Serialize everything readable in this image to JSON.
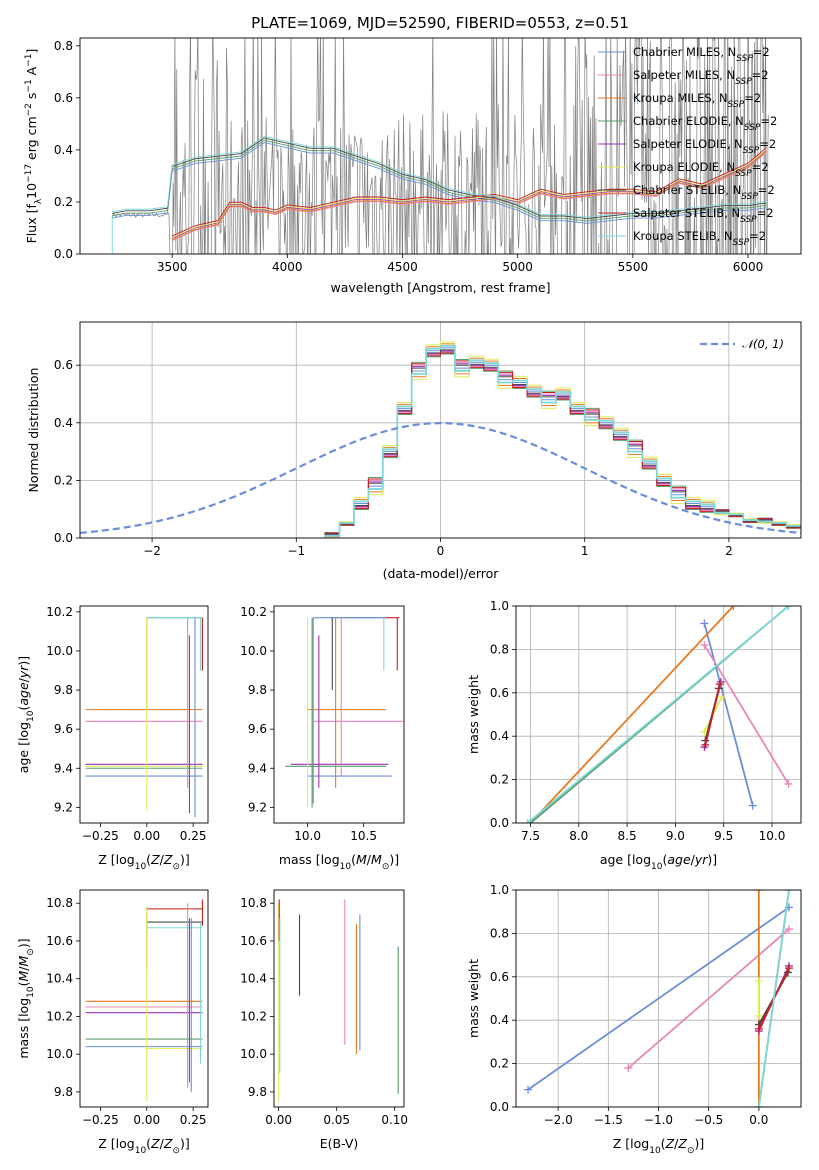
{
  "figure": {
    "title": "PLATE=1069, MJD=52590, FIBERID=0553, z=0.51"
  },
  "series_styles": [
    {
      "name": "Chabrier MILES, N$_{SSP}$=2",
      "label_main": "Chabrier MILES, N",
      "label_sub": "SSP",
      "label_tail": "=2",
      "color": "#6a8fd8"
    },
    {
      "name": "Salpeter MILES, N$_{SSP}$=2",
      "label_main": "Salpeter MILES, N",
      "label_sub": "SSP",
      "label_tail": "=2",
      "color": "#e887b8"
    },
    {
      "name": "Kroupa MILES, N$_{SSP}$=2",
      "label_main": "Kroupa MILES, N",
      "label_sub": "SSP",
      "label_tail": "=2",
      "color": "#e87a1e"
    },
    {
      "name": "Chabrier ELODIE, N$_{SSP}$=2",
      "label_main": "Chabrier ELODIE, N",
      "label_sub": "SSP",
      "label_tail": "=2",
      "color": "#5a9e6e"
    },
    {
      "name": "Salpeter ELODIE, N$_{SSP}$=2",
      "label_main": "Salpeter ELODIE, N",
      "label_sub": "SSP",
      "label_tail": "=2",
      "color": "#9a36b8"
    },
    {
      "name": "Kroupa ELODIE, N$_{SSP}$=2",
      "label_main": "Kroupa ELODIE, N",
      "label_sub": "SSP",
      "label_tail": "=2",
      "color": "#e4ec5c"
    },
    {
      "name": "Chabrier STELIB, N$_{SSP}$=2",
      "label_main": "Chabrier STELIB, N",
      "label_sub": "SSP",
      "label_tail": "=2",
      "color": "#4a4a4a"
    },
    {
      "name": "Salpeter STELIB, N$_{SSP}$=2",
      "label_main": "Salpeter STELIB, N",
      "label_sub": "SSP",
      "label_tail": "=2",
      "color": "#c81e1e"
    },
    {
      "name": "Kroupa STELIB, N$_{SSP}$=2",
      "label_main": "Kroupa STELIB, N",
      "label_sub": "SSP",
      "label_tail": "=2",
      "color": "#7fd8d8"
    }
  ],
  "chart_data": [
    {
      "id": "spectrum",
      "type": "line",
      "xlabel": "wavelength [Angstrom, rest frame]",
      "ylabel": "Flux [f$_\\lambda$10$^{-17}$ erg cm$^{-2}$ s$^{-1}$ A$^{-1}$]",
      "ylabel_parts": [
        "Flux [f",
        "λ",
        "10",
        "−17",
        " erg cm",
        "−2",
        " s",
        "−1",
        " A",
        "−1",
        "]"
      ],
      "xlim": [
        3100,
        6230
      ],
      "ylim": [
        0,
        0.83
      ],
      "xticks": [
        3500,
        4000,
        4500,
        5000,
        5500,
        6000
      ],
      "yticks": [
        0.0,
        0.2,
        0.4,
        0.6,
        0.8
      ],
      "grid": false,
      "legend_loc": "upper right",
      "data_color": "#808080",
      "continuum_blue": {
        "color": "#7fd8d8",
        "x": [
          3240,
          3300,
          3400,
          3480,
          3500,
          3600,
          3700,
          3800,
          3900,
          4000,
          4100,
          4200,
          4300,
          4400,
          4500,
          4600,
          4700,
          4800,
          4900,
          5000,
          5100,
          5200,
          5300,
          5400,
          5500,
          5600,
          5700,
          5800,
          5900,
          6000,
          6080
        ],
        "y": [
          0.15,
          0.16,
          0.16,
          0.17,
          0.33,
          0.36,
          0.37,
          0.38,
          0.44,
          0.42,
          0.4,
          0.4,
          0.37,
          0.34,
          0.3,
          0.28,
          0.24,
          0.22,
          0.21,
          0.18,
          0.14,
          0.14,
          0.13,
          0.14,
          0.15,
          0.15,
          0.16,
          0.17,
          0.18,
          0.18,
          0.19
        ]
      },
      "continuum_red": {
        "color": "#e87a1e",
        "x": [
          3500,
          3550,
          3600,
          3650,
          3700,
          3750,
          3800,
          3850,
          3900,
          3950,
          4000,
          4100,
          4200,
          4300,
          4400,
          4500,
          4600,
          4700,
          4800,
          4900,
          5000,
          5100,
          5200,
          5300,
          5400,
          5500,
          5600,
          5700,
          5800,
          5900,
          6000,
          6080
        ],
        "y": [
          0.06,
          0.08,
          0.1,
          0.11,
          0.12,
          0.19,
          0.19,
          0.17,
          0.17,
          0.16,
          0.18,
          0.17,
          0.19,
          0.21,
          0.21,
          0.2,
          0.21,
          0.2,
          0.21,
          0.22,
          0.2,
          0.24,
          0.22,
          0.23,
          0.24,
          0.24,
          0.23,
          0.28,
          0.26,
          0.3,
          0.34,
          0.4
        ]
      }
    },
    {
      "id": "residuals",
      "type": "line",
      "xlabel": "(data-model)/error",
      "ylabel": "Normed distribution",
      "xlim": [
        -2.5,
        2.5
      ],
      "ylim": [
        0,
        0.75
      ],
      "xticks": [
        -2,
        -1,
        0,
        1,
        2
      ],
      "yticks": [
        0.0,
        0.2,
        0.4,
        0.6
      ],
      "grid": true,
      "legend_loc": "upper right",
      "legend_label": "𝒩(0, 1)",
      "normal_color": "#6a8fd8",
      "bin_edges": [
        -0.8,
        -0.7,
        -0.6,
        -0.5,
        -0.4,
        -0.3,
        -0.2,
        -0.1,
        0.0,
        0.1,
        0.2,
        0.3,
        0.4,
        0.5,
        0.6,
        0.7,
        0.8,
        0.9,
        1.0,
        1.1,
        1.2,
        1.3,
        1.4,
        1.5,
        1.6,
        1.7,
        1.8,
        1.9,
        2.0,
        2.1,
        2.2,
        2.3,
        2.4,
        2.5
      ],
      "hist_mean": [
        0.01,
        0.05,
        0.12,
        0.18,
        0.3,
        0.45,
        0.58,
        0.65,
        0.66,
        0.59,
        0.61,
        0.6,
        0.55,
        0.54,
        0.51,
        0.48,
        0.5,
        0.45,
        0.42,
        0.4,
        0.36,
        0.31,
        0.26,
        0.2,
        0.15,
        0.12,
        0.11,
        0.09,
        0.08,
        0.06,
        0.06,
        0.05,
        0.04
      ],
      "series_jitter": [
        0.0,
        0.02,
        -0.02,
        0.03,
        0.015,
        -0.03,
        0.01,
        0.025,
        -0.01
      ]
    },
    {
      "id": "age-vs-Z",
      "type": "scatter",
      "xlabel": "Z [log$_{10}$(Z/Z$_\\odot$)]",
      "ylabel": "age [log$_{10}$(age/yr)]",
      "xlim": [
        -0.36,
        0.33
      ],
      "ylim": [
        9.12,
        10.23
      ],
      "xticks": [
        -0.25,
        0.0,
        0.25
      ],
      "yticks": [
        9.2,
        9.4,
        9.6,
        9.8,
        10.0,
        10.2
      ],
      "xtick_labels": [
        "−0.25",
        "0.00",
        "0.25"
      ],
      "grid": false,
      "hlines": [
        {
          "series": 0,
          "y": 9.36,
          "x": [
            -0.33,
            0.3
          ]
        },
        {
          "series": 1,
          "y": 9.64,
          "x": [
            -0.33,
            0.3
          ]
        },
        {
          "series": 2,
          "y": 9.7,
          "x": [
            -0.33,
            0.3
          ]
        },
        {
          "series": 3,
          "y": 9.4,
          "x": [
            -0.33,
            0.3
          ]
        },
        {
          "series": 4,
          "y": 9.42,
          "x": [
            -0.33,
            0.3
          ]
        },
        {
          "series": 5,
          "y": 9.41,
          "x": [
            -0.33,
            0.3
          ]
        },
        {
          "series": 0,
          "y": 10.17,
          "x": [
            0.0,
            0.3
          ]
        },
        {
          "series": 8,
          "y": 10.17,
          "x": [
            0.0,
            0.3
          ]
        }
      ],
      "vlines": [
        {
          "series": 0,
          "x": 0.26,
          "y": [
            9.15,
            10.17
          ]
        },
        {
          "series": 1,
          "x": 0.22,
          "y": [
            9.3,
            10.17
          ]
        },
        {
          "series": 2,
          "x": 0.0,
          "y": [
            9.7,
            10.17
          ]
        },
        {
          "series": 4,
          "x": 0.23,
          "y": [
            9.17,
            10.08
          ]
        },
        {
          "series": 5,
          "x": 0.0,
          "y": [
            9.18,
            10.17
          ]
        },
        {
          "series": 7,
          "x": 0.3,
          "y": [
            9.9,
            10.17
          ]
        },
        {
          "series": 8,
          "x": 0.29,
          "y": [
            9.9,
            10.17
          ]
        }
      ]
    },
    {
      "id": "age-vs-mass",
      "type": "scatter",
      "xlabel": "mass [log$_{10}$(M/M$_\\odot$)]",
      "xlim": [
        9.7,
        10.86
      ],
      "ylim": [
        9.12,
        10.23
      ],
      "xticks": [
        10.0,
        10.5
      ],
      "yticks": [
        9.2,
        9.4,
        9.6,
        9.8,
        10.0,
        10.2
      ],
      "grid": false,
      "hlines": [
        {
          "series": 0,
          "y": 9.36,
          "x": [
            10.0,
            10.75
          ]
        },
        {
          "series": 1,
          "y": 9.64,
          "x": [
            10.05,
            10.85
          ]
        },
        {
          "series": 2,
          "y": 9.7,
          "x": [
            10.0,
            10.7
          ]
        },
        {
          "series": 3,
          "y": 9.41,
          "x": [
            9.8,
            10.7
          ]
        },
        {
          "series": 4,
          "y": 9.42,
          "x": [
            9.85,
            10.72
          ]
        },
        {
          "series": 7,
          "y": 10.17,
          "x": [
            10.3,
            10.82
          ]
        },
        {
          "series": 8,
          "y": 10.17,
          "x": [
            10.2,
            10.7
          ]
        },
        {
          "series": 0,
          "y": 10.17,
          "x": [
            10.05,
            10.7
          ]
        }
      ],
      "vlines": [
        {
          "series": 0,
          "x": 10.05,
          "y": [
            9.22,
            10.17
          ]
        },
        {
          "series": 1,
          "x": 10.3,
          "y": [
            9.36,
            10.17
          ]
        },
        {
          "series": 2,
          "x": 10.25,
          "y": [
            9.3,
            10.17
          ]
        },
        {
          "series": 3,
          "x": 10.04,
          "y": [
            9.2,
            10.17
          ]
        },
        {
          "series": 4,
          "x": 10.1,
          "y": [
            9.3,
            10.08
          ]
        },
        {
          "series": 5,
          "x": 10.0,
          "y": [
            9.2,
            10.17
          ]
        },
        {
          "series": 6,
          "x": 10.22,
          "y": [
            9.8,
            10.17
          ]
        },
        {
          "series": 7,
          "x": 10.8,
          "y": [
            9.9,
            10.17
          ]
        },
        {
          "series": 8,
          "x": 10.68,
          "y": [
            9.9,
            10.17
          ]
        }
      ]
    },
    {
      "id": "mass-weight-vs-age",
      "type": "line",
      "xlabel": "age [log$_{10}$(age/yr)]",
      "ylabel": "mass weight",
      "xlim": [
        7.35,
        10.3
      ],
      "ylim": [
        0,
        1
      ],
      "xticks": [
        7.5,
        8.0,
        8.5,
        9.0,
        9.5,
        10.0
      ],
      "yticks": [
        0.0,
        0.2,
        0.4,
        0.6,
        0.8,
        1.0
      ],
      "grid": true,
      "series_points": [
        {
          "series": 0,
          "x": [
            9.3,
            9.8
          ],
          "y": [
            0.92,
            0.08
          ]
        },
        {
          "series": 1,
          "x": [
            9.3,
            10.17
          ],
          "y": [
            0.82,
            0.18
          ]
        },
        {
          "series": 2,
          "x": [
            7.5,
            9.6
          ],
          "y": [
            0.0,
            1.0
          ]
        },
        {
          "series": 3,
          "x": [
            7.5,
            10.17
          ],
          "y": [
            0.0,
            1.0
          ]
        },
        {
          "series": 4,
          "x": [
            9.3,
            9.47
          ],
          "y": [
            0.35,
            0.65
          ]
        },
        {
          "series": 5,
          "x": [
            9.3,
            9.48
          ],
          "y": [
            0.42,
            0.58
          ]
        },
        {
          "series": 6,
          "x": [
            9.31,
            9.45
          ],
          "y": [
            0.38,
            0.62
          ]
        },
        {
          "series": 7,
          "x": [
            9.31,
            9.46
          ],
          "y": [
            0.36,
            0.64
          ]
        },
        {
          "series": 8,
          "x": [
            7.47,
            10.17
          ],
          "y": [
            0.0,
            1.0
          ]
        }
      ]
    },
    {
      "id": "mass-vs-Z",
      "type": "scatter",
      "xlabel": "Z [log$_{10}$(Z/Z$_\\odot$)]",
      "ylabel": "mass [log$_{10}$(M/M$_\\odot$)]",
      "xlim": [
        -0.36,
        0.33
      ],
      "ylim": [
        9.72,
        10.87
      ],
      "xticks": [
        -0.25,
        0.0,
        0.25
      ],
      "yticks": [
        9.8,
        10.0,
        10.2,
        10.4,
        10.6,
        10.8
      ],
      "xtick_labels": [
        "−0.25",
        "0.00",
        "0.25"
      ],
      "grid": false,
      "hlines": [
        {
          "series": 0,
          "y": 10.04,
          "x": [
            -0.33,
            0.3
          ]
        },
        {
          "series": 1,
          "y": 10.25,
          "x": [
            -0.33,
            0.3
          ]
        },
        {
          "series": 2,
          "y": 10.28,
          "x": [
            -0.33,
            0.3
          ]
        },
        {
          "series": 3,
          "y": 10.08,
          "x": [
            -0.33,
            0.3
          ]
        },
        {
          "series": 4,
          "y": 10.22,
          "x": [
            -0.33,
            0.3
          ]
        },
        {
          "series": 5,
          "y": 10.03,
          "x": [
            0.0,
            0.3
          ]
        },
        {
          "series": 6,
          "y": 10.7,
          "x": [
            0.0,
            0.3
          ]
        },
        {
          "series": 7,
          "y": 10.77,
          "x": [
            0.0,
            0.3
          ]
        },
        {
          "series": 8,
          "y": 10.67,
          "x": [
            0.0,
            0.3
          ]
        }
      ],
      "vlines": [
        {
          "series": 0,
          "x": 0.24,
          "y": [
            9.8,
            10.72
          ]
        },
        {
          "series": 1,
          "x": 0.22,
          "y": [
            9.82,
            10.8
          ]
        },
        {
          "series": 2,
          "x": 0.0,
          "y": [
            10.45,
            10.78
          ]
        },
        {
          "series": 4,
          "x": 0.23,
          "y": [
            9.85,
            10.72
          ]
        },
        {
          "series": 5,
          "x": 0.0,
          "y": [
            9.75,
            10.78
          ]
        },
        {
          "series": 7,
          "x": 0.3,
          "y": [
            10.68,
            10.82
          ]
        },
        {
          "series": 8,
          "x": 0.29,
          "y": [
            9.95,
            10.7
          ]
        }
      ]
    },
    {
      "id": "mass-vs-EBV",
      "type": "scatter",
      "xlabel": "E(B-V)",
      "xlim": [
        -0.004,
        0.108
      ],
      "ylim": [
        9.72,
        10.87
      ],
      "xticks": [
        0.0,
        0.05,
        0.1
      ],
      "xtick_labels": [
        "0.00",
        "0.05",
        "0.10"
      ],
      "yticks": [
        9.8,
        10.0,
        10.2,
        10.4,
        10.6,
        10.8
      ],
      "grid": false,
      "vlines": [
        {
          "series": 5,
          "x": 0.0,
          "y": [
            9.75,
            10.8
          ]
        },
        {
          "series": 7,
          "x": 0.0005,
          "y": [
            10.6,
            10.82
          ]
        },
        {
          "series": 8,
          "x": 0.001,
          "y": [
            9.9,
            10.72
          ]
        },
        {
          "series": 6,
          "x": 0.018,
          "y": [
            10.31,
            10.74
          ]
        },
        {
          "series": 1,
          "x": 0.057,
          "y": [
            10.05,
            10.82
          ]
        },
        {
          "series": 2,
          "x": 0.067,
          "y": [
            10.0,
            10.69
          ]
        },
        {
          "series": 0,
          "x": 0.07,
          "y": [
            10.02,
            10.74
          ]
        },
        {
          "series": 3,
          "x": 0.103,
          "y": [
            9.79,
            10.57
          ]
        }
      ]
    },
    {
      "id": "mass-weight-vs-Z",
      "type": "line",
      "xlabel": "Z [log$_{10}$(Z/Z$_\\odot$)]",
      "ylabel": "mass weight",
      "xlim": [
        -2.42,
        0.42
      ],
      "ylim": [
        0,
        1
      ],
      "xticks": [
        -2.0,
        -1.5,
        -1.0,
        -0.5,
        0.0
      ],
      "xtick_labels": [
        "−2.0",
        "−1.5",
        "−1.0",
        "−0.5",
        "0.0"
      ],
      "yticks": [
        0.0,
        0.2,
        0.4,
        0.6,
        0.8,
        1.0
      ],
      "grid": true,
      "series_points": [
        {
          "series": 0,
          "x": [
            -2.3,
            0.3
          ],
          "y": [
            0.08,
            0.92
          ]
        },
        {
          "series": 1,
          "x": [
            -1.3,
            0.3
          ],
          "y": [
            0.18,
            0.82
          ]
        },
        {
          "series": 2,
          "x": [
            0.0,
            0.0
          ],
          "y": [
            0.0,
            1.0
          ]
        },
        {
          "series": 3,
          "x": [
            0.0,
            0.3
          ],
          "y": [
            0.0,
            1.0
          ]
        },
        {
          "series": 4,
          "x": [
            0.0,
            0.3
          ],
          "y": [
            0.35,
            0.65
          ]
        },
        {
          "series": 5,
          "x": [
            0.0,
            0.0
          ],
          "y": [
            0.42,
            0.58
          ]
        },
        {
          "series": 6,
          "x": [
            0.0,
            0.29
          ],
          "y": [
            0.38,
            0.62
          ]
        },
        {
          "series": 7,
          "x": [
            0.0,
            0.3
          ],
          "y": [
            0.36,
            0.64
          ]
        },
        {
          "series": 8,
          "x": [
            0.0,
            0.3
          ],
          "y": [
            0.0,
            1.0
          ]
        }
      ]
    }
  ]
}
